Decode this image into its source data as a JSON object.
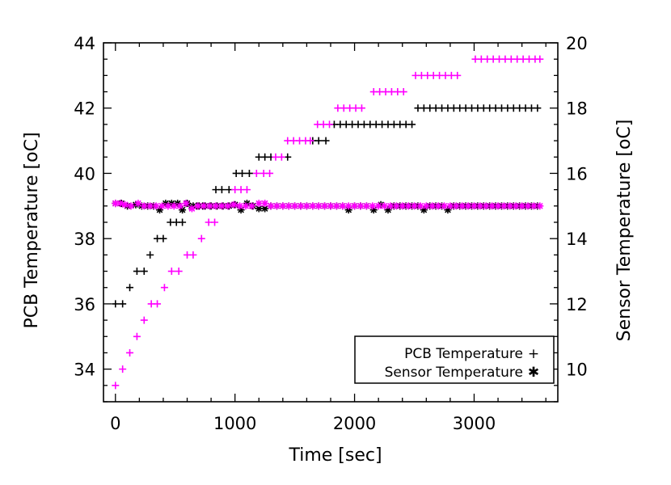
{
  "chart_data": {
    "type": "scatter",
    "title": "",
    "xlabel": "Time [sec]",
    "ylabel_left": "PCB Temperature [oC]",
    "ylabel_right": "Sensor Temperature [oC]",
    "xlim": [
      -100,
      3700
    ],
    "ylim_left": [
      33,
      44
    ],
    "ylim_right": [
      9,
      20
    ],
    "x_ticks": [
      "0",
      "1000",
      "2000",
      "3000"
    ],
    "y_ticks_left": [
      "34",
      "36",
      "38",
      "40",
      "42",
      "44"
    ],
    "y_ticks_right": [
      "10",
      "12",
      "14",
      "16",
      "18",
      "20"
    ],
    "grid": false,
    "legend_position": "bottom-right",
    "legend": [
      {
        "label": "PCB Temperature",
        "symbol": "+"
      },
      {
        "label": "Sensor Temperature",
        "symbol": "✱"
      }
    ],
    "colors": {
      "run_black": "#000000",
      "run_magenta": "#ff00ff"
    },
    "series": [
      {
        "run": "black",
        "kind": "pcb",
        "axis": "left",
        "marker": "plus",
        "color": "#000000",
        "points": [
          [
            0,
            36.0
          ],
          [
            60,
            36.0
          ],
          [
            120,
            36.5
          ],
          [
            180,
            37.0
          ],
          [
            240,
            37.0
          ],
          [
            290,
            37.5
          ],
          [
            350,
            38.0
          ],
          [
            400,
            38.0
          ],
          [
            460,
            38.5
          ],
          [
            510,
            38.5
          ],
          [
            560,
            38.5
          ],
          [
            620,
            39.0
          ],
          [
            680,
            39.0
          ],
          [
            730,
            39.0
          ],
          [
            790,
            39.0
          ],
          [
            840,
            39.5
          ],
          [
            890,
            39.5
          ],
          [
            950,
            39.5
          ],
          [
            1010,
            40.0
          ],
          [
            1060,
            40.0
          ],
          [
            1120,
            40.0
          ],
          [
            1200,
            40.5
          ],
          [
            1250,
            40.5
          ],
          [
            1300,
            40.5
          ],
          [
            1440,
            40.5
          ],
          [
            1650,
            41.0
          ],
          [
            1700,
            41.0
          ],
          [
            1760,
            41.0
          ],
          [
            1830,
            41.5
          ],
          [
            1880,
            41.5
          ],
          [
            1930,
            41.5
          ],
          [
            1980,
            41.5
          ],
          [
            2030,
            41.5
          ],
          [
            2080,
            41.5
          ],
          [
            2130,
            41.5
          ],
          [
            2180,
            41.5
          ],
          [
            2230,
            41.5
          ],
          [
            2280,
            41.5
          ],
          [
            2330,
            41.5
          ],
          [
            2380,
            41.5
          ],
          [
            2430,
            41.5
          ],
          [
            2480,
            41.5
          ],
          [
            2530,
            42.0
          ],
          [
            2580,
            42.0
          ],
          [
            2630,
            42.0
          ],
          [
            2680,
            42.0
          ],
          [
            2730,
            42.0
          ],
          [
            2780,
            42.0
          ],
          [
            2830,
            42.0
          ],
          [
            2880,
            42.0
          ],
          [
            2930,
            42.0
          ],
          [
            2980,
            42.0
          ],
          [
            3030,
            42.0
          ],
          [
            3080,
            42.0
          ],
          [
            3130,
            42.0
          ],
          [
            3180,
            42.0
          ],
          [
            3230,
            42.0
          ],
          [
            3280,
            42.0
          ],
          [
            3330,
            42.0
          ],
          [
            3380,
            42.0
          ],
          [
            3430,
            42.0
          ],
          [
            3480,
            42.0
          ],
          [
            3530,
            42.0
          ]
        ]
      },
      {
        "run": "magenta",
        "kind": "pcb",
        "axis": "left",
        "marker": "plus",
        "color": "#ff00ff",
        "points": [
          [
            0,
            33.5
          ],
          [
            60,
            34.0
          ],
          [
            120,
            34.5
          ],
          [
            180,
            35.0
          ],
          [
            240,
            35.5
          ],
          [
            300,
            36.0
          ],
          [
            350,
            36.0
          ],
          [
            410,
            36.5
          ],
          [
            470,
            37.0
          ],
          [
            530,
            37.0
          ],
          [
            600,
            37.5
          ],
          [
            650,
            37.5
          ],
          [
            720,
            38.0
          ],
          [
            780,
            38.5
          ],
          [
            830,
            38.5
          ],
          [
            1000,
            39.5
          ],
          [
            1050,
            39.5
          ],
          [
            1100,
            39.5
          ],
          [
            1180,
            40.0
          ],
          [
            1240,
            40.0
          ],
          [
            1290,
            40.0
          ],
          [
            1340,
            40.5
          ],
          [
            1390,
            40.5
          ],
          [
            1440,
            41.0
          ],
          [
            1490,
            41.0
          ],
          [
            1540,
            41.0
          ],
          [
            1590,
            41.0
          ],
          [
            1630,
            41.0
          ],
          [
            1690,
            41.5
          ],
          [
            1740,
            41.5
          ],
          [
            1790,
            41.5
          ],
          [
            1860,
            42.0
          ],
          [
            1910,
            42.0
          ],
          [
            1960,
            42.0
          ],
          [
            2010,
            42.0
          ],
          [
            2060,
            42.0
          ],
          [
            2160,
            42.5
          ],
          [
            2210,
            42.5
          ],
          [
            2260,
            42.5
          ],
          [
            2310,
            42.5
          ],
          [
            2360,
            42.5
          ],
          [
            2410,
            42.5
          ],
          [
            2510,
            43.0
          ],
          [
            2560,
            43.0
          ],
          [
            2610,
            43.0
          ],
          [
            2660,
            43.0
          ],
          [
            2710,
            43.0
          ],
          [
            2760,
            43.0
          ],
          [
            2810,
            43.0
          ],
          [
            2860,
            43.0
          ],
          [
            3010,
            43.5
          ],
          [
            3060,
            43.5
          ],
          [
            3110,
            43.5
          ],
          [
            3160,
            43.5
          ],
          [
            3210,
            43.5
          ],
          [
            3260,
            43.5
          ],
          [
            3310,
            43.5
          ],
          [
            3360,
            43.5
          ],
          [
            3410,
            43.5
          ],
          [
            3460,
            43.5
          ],
          [
            3510,
            43.5
          ],
          [
            3550,
            43.5
          ]
        ]
      },
      {
        "run": "black",
        "kind": "sensor",
        "axis": "right",
        "marker": "asterisk",
        "color": "#000000",
        "points": [
          [
            0,
            15.08
          ],
          [
            50,
            15.08
          ],
          [
            100,
            15.0
          ],
          [
            170,
            15.04
          ],
          [
            220,
            15.0
          ],
          [
            270,
            15.0
          ],
          [
            320,
            15.0
          ],
          [
            370,
            14.88
          ],
          [
            420,
            15.08
          ],
          [
            470,
            15.08
          ],
          [
            520,
            15.08
          ],
          [
            560,
            14.88
          ],
          [
            600,
            15.08
          ],
          [
            650,
            15.0
          ],
          [
            700,
            15.0
          ],
          [
            750,
            15.0
          ],
          [
            800,
            15.0
          ],
          [
            850,
            15.0
          ],
          [
            900,
            15.0
          ],
          [
            950,
            15.0
          ],
          [
            1000,
            15.04
          ],
          [
            1050,
            14.88
          ],
          [
            1100,
            15.08
          ],
          [
            1150,
            15.0
          ],
          [
            1200,
            14.92
          ],
          [
            1250,
            14.92
          ],
          [
            1300,
            15.0
          ],
          [
            1350,
            15.0
          ],
          [
            1400,
            15.0
          ],
          [
            1450,
            15.0
          ],
          [
            1500,
            15.0
          ],
          [
            1550,
            15.0
          ],
          [
            1600,
            15.0
          ],
          [
            1650,
            15.0
          ],
          [
            1700,
            15.0
          ],
          [
            1750,
            15.0
          ],
          [
            1800,
            15.0
          ],
          [
            1850,
            15.0
          ],
          [
            1900,
            15.0
          ],
          [
            1950,
            14.88
          ],
          [
            2000,
            15.0
          ],
          [
            2050,
            15.0
          ],
          [
            2100,
            15.0
          ],
          [
            2160,
            14.88
          ],
          [
            2220,
            15.04
          ],
          [
            2280,
            14.88
          ],
          [
            2330,
            15.0
          ],
          [
            2380,
            15.0
          ],
          [
            2430,
            15.0
          ],
          [
            2480,
            15.0
          ],
          [
            2530,
            15.0
          ],
          [
            2580,
            14.88
          ],
          [
            2630,
            15.0
          ],
          [
            2680,
            15.0
          ],
          [
            2730,
            15.0
          ],
          [
            2780,
            14.88
          ],
          [
            2830,
            15.0
          ],
          [
            2880,
            15.0
          ],
          [
            2930,
            15.0
          ],
          [
            2980,
            15.0
          ],
          [
            3030,
            15.0
          ],
          [
            3080,
            15.0
          ],
          [
            3130,
            15.0
          ],
          [
            3180,
            15.0
          ],
          [
            3230,
            15.0
          ],
          [
            3280,
            15.0
          ],
          [
            3330,
            15.0
          ],
          [
            3380,
            15.0
          ],
          [
            3430,
            15.0
          ],
          [
            3480,
            15.0
          ],
          [
            3530,
            15.0
          ]
        ]
      },
      {
        "run": "magenta",
        "kind": "sensor",
        "axis": "right",
        "marker": "asterisk",
        "color": "#ff00ff",
        "points": [
          [
            0,
            15.08
          ],
          [
            40,
            15.08
          ],
          [
            80,
            15.04
          ],
          [
            130,
            15.0
          ],
          [
            190,
            15.08
          ],
          [
            240,
            15.0
          ],
          [
            290,
            15.0
          ],
          [
            340,
            15.0
          ],
          [
            390,
            15.0
          ],
          [
            440,
            15.0
          ],
          [
            490,
            15.0
          ],
          [
            540,
            15.0
          ],
          [
            590,
            15.08
          ],
          [
            640,
            14.92
          ],
          [
            690,
            15.0
          ],
          [
            740,
            15.0
          ],
          [
            790,
            15.0
          ],
          [
            840,
            15.0
          ],
          [
            890,
            15.0
          ],
          [
            940,
            15.0
          ],
          [
            990,
            15.04
          ],
          [
            1040,
            15.0
          ],
          [
            1090,
            15.0
          ],
          [
            1140,
            15.0
          ],
          [
            1200,
            15.08
          ],
          [
            1250,
            15.08
          ],
          [
            1300,
            15.0
          ],
          [
            1350,
            15.0
          ],
          [
            1400,
            15.0
          ],
          [
            1450,
            15.0
          ],
          [
            1500,
            15.0
          ],
          [
            1550,
            15.0
          ],
          [
            1600,
            15.0
          ],
          [
            1650,
            15.0
          ],
          [
            1700,
            15.0
          ],
          [
            1750,
            15.0
          ],
          [
            1800,
            15.0
          ],
          [
            1850,
            15.0
          ],
          [
            1900,
            15.0
          ],
          [
            1950,
            15.0
          ],
          [
            2000,
            15.0
          ],
          [
            2050,
            15.0
          ],
          [
            2100,
            15.0
          ],
          [
            2150,
            15.0
          ],
          [
            2200,
            15.0
          ],
          [
            2250,
            15.0
          ],
          [
            2300,
            15.0
          ],
          [
            2350,
            15.0
          ],
          [
            2400,
            15.0
          ],
          [
            2450,
            15.0
          ],
          [
            2500,
            15.0
          ],
          [
            2550,
            15.0
          ],
          [
            2600,
            15.0
          ],
          [
            2650,
            15.0
          ],
          [
            2700,
            15.0
          ],
          [
            2750,
            15.0
          ],
          [
            2800,
            15.0
          ],
          [
            2850,
            15.0
          ],
          [
            2900,
            15.0
          ],
          [
            2950,
            15.0
          ],
          [
            3000,
            15.0
          ],
          [
            3050,
            15.0
          ],
          [
            3100,
            15.0
          ],
          [
            3150,
            15.0
          ],
          [
            3200,
            15.0
          ],
          [
            3250,
            15.0
          ],
          [
            3300,
            15.0
          ],
          [
            3350,
            15.0
          ],
          [
            3400,
            15.0
          ],
          [
            3450,
            15.0
          ],
          [
            3500,
            15.0
          ],
          [
            3550,
            15.0
          ]
        ]
      }
    ]
  }
}
